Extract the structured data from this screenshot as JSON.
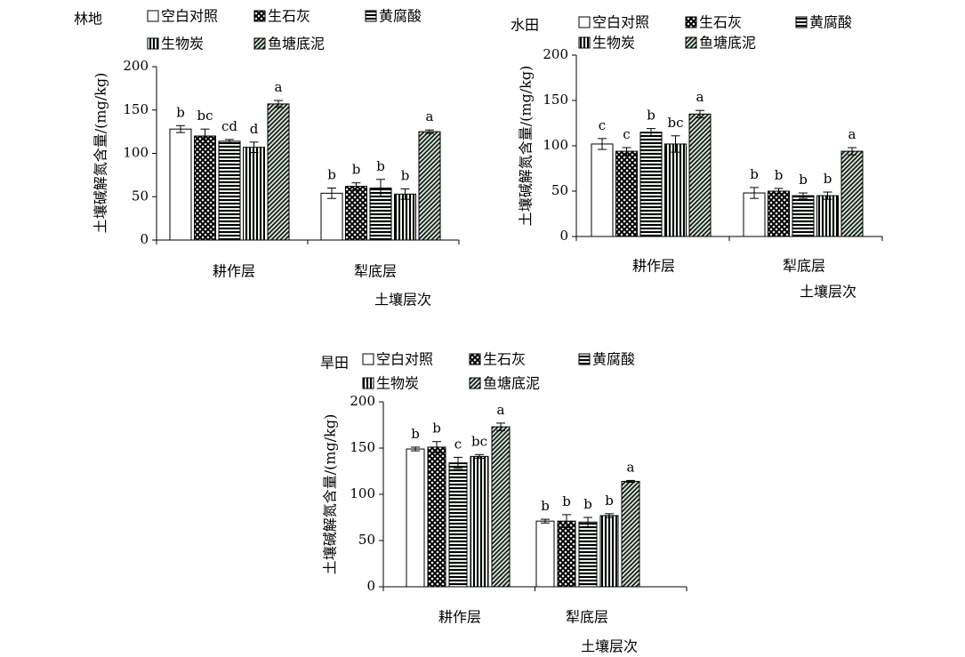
{
  "chart_data": [
    {
      "type": "bar",
      "title": "林地",
      "categories": [
        "耕作层",
        "犁底层"
      ],
      "xlabel": "土壤层次",
      "ylabel": "土壤碱解氮含量/(mg/kg)",
      "ylim": [
        0,
        200
      ],
      "yticks": [
        0,
        50,
        100,
        150,
        200
      ],
      "legend_position": "top",
      "series": [
        {
          "name": "空白对照",
          "pattern": "white",
          "values": [
            128,
            54
          ],
          "errors": [
            4,
            6
          ],
          "letters": [
            "b",
            "b"
          ]
        },
        {
          "name": "生石灰",
          "pattern": "crosshatch",
          "values": [
            120,
            62
          ],
          "errors": [
            8,
            4
          ],
          "letters": [
            "bc",
            "b"
          ]
        },
        {
          "name": "黄腐酸",
          "pattern": "horizontal",
          "values": [
            114,
            60
          ],
          "errors": [
            2,
            10
          ],
          "letters": [
            "cd",
            "b"
          ]
        },
        {
          "name": "生物炭",
          "pattern": "vertical",
          "values": [
            107,
            53
          ],
          "errors": [
            6,
            6
          ],
          "letters": [
            "d",
            "b"
          ]
        },
        {
          "name": "鱼塘底泥",
          "pattern": "diagonal",
          "values": [
            157,
            125
          ],
          "errors": [
            4,
            2
          ],
          "letters": [
            "a",
            "a"
          ]
        }
      ]
    },
    {
      "type": "bar",
      "title": "水田",
      "categories": [
        "耕作层",
        "犁底层"
      ],
      "xlabel": "土壤层次",
      "ylabel": "土壤碱解氮含量/(mg/kg)",
      "ylim": [
        0,
        200
      ],
      "yticks": [
        0,
        50,
        100,
        150,
        200
      ],
      "legend_position": "top",
      "series": [
        {
          "name": "空白对照",
          "pattern": "white",
          "values": [
            102,
            48
          ],
          "errors": [
            6,
            6
          ],
          "letters": [
            "c",
            "b"
          ]
        },
        {
          "name": "生石灰",
          "pattern": "crosshatch",
          "values": [
            94,
            50
          ],
          "errors": [
            4,
            3
          ],
          "letters": [
            "c",
            "b"
          ]
        },
        {
          "name": "黄腐酸",
          "pattern": "horizontal",
          "values": [
            115,
            45
          ],
          "errors": [
            4,
            3
          ],
          "letters": [
            "b",
            "b"
          ]
        },
        {
          "name": "生物炭",
          "pattern": "vertical",
          "values": [
            102,
            45
          ],
          "errors": [
            9,
            4
          ],
          "letters": [
            "bc",
            "b"
          ]
        },
        {
          "name": "鱼塘底泥",
          "pattern": "diagonal",
          "values": [
            135,
            94
          ],
          "errors": [
            4,
            4
          ],
          "letters": [
            "a",
            "a"
          ]
        }
      ]
    },
    {
      "type": "bar",
      "title": "旱田",
      "categories": [
        "耕作层",
        "犁底层"
      ],
      "xlabel": "土壤层次",
      "ylabel": "土壤碱解氮含量/(mg/kg)",
      "ylim": [
        0,
        200
      ],
      "yticks": [
        0,
        50,
        100,
        150,
        200
      ],
      "legend_position": "top",
      "series": [
        {
          "name": "空白对照",
          "pattern": "white",
          "values": [
            149,
            71
          ],
          "errors": [
            2,
            2
          ],
          "letters": [
            "b",
            "b"
          ]
        },
        {
          "name": "生石灰",
          "pattern": "crosshatch",
          "values": [
            151,
            71
          ],
          "errors": [
            6,
            7
          ],
          "letters": [
            "b",
            "b"
          ]
        },
        {
          "name": "黄腐酸",
          "pattern": "horizontal",
          "values": [
            134,
            70
          ],
          "errors": [
            6,
            5
          ],
          "letters": [
            "c",
            "b"
          ]
        },
        {
          "name": "生物炭",
          "pattern": "vertical",
          "values": [
            141,
            77
          ],
          "errors": [
            2,
            2
          ],
          "letters": [
            "bc",
            "b"
          ]
        },
        {
          "name": "鱼塘底泥",
          "pattern": "diagonal",
          "values": [
            173,
            114
          ],
          "errors": [
            4,
            1
          ],
          "letters": [
            "a",
            "a"
          ]
        }
      ]
    }
  ]
}
